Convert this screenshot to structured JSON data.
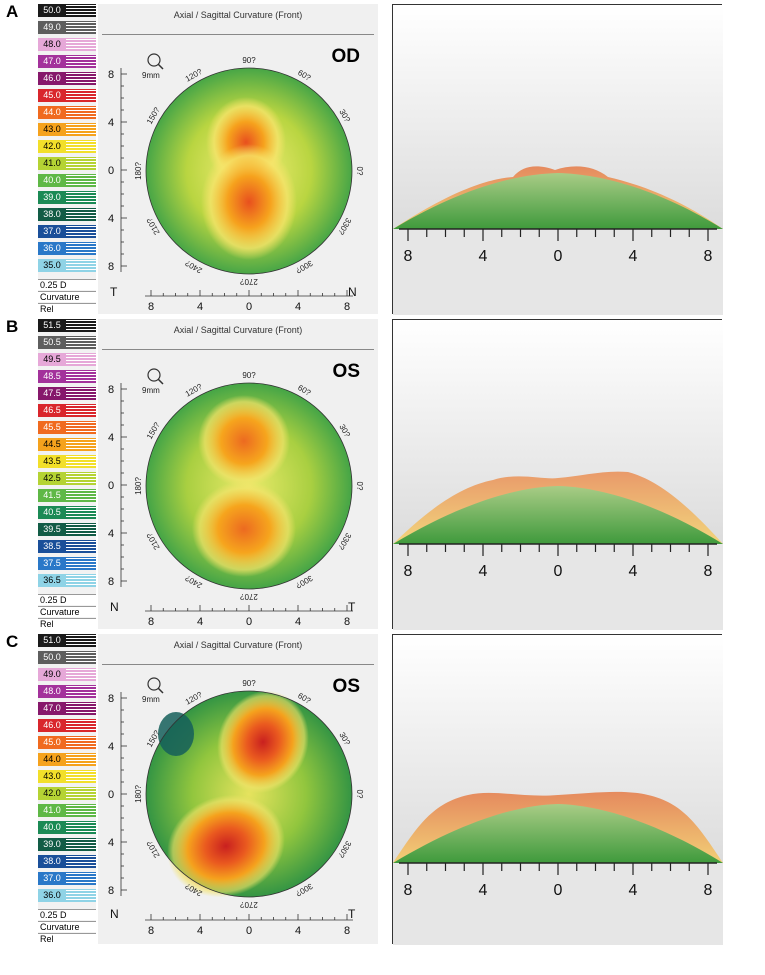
{
  "panels": [
    {
      "label": "A",
      "eye": "OD",
      "title": "Axial / Sagittal Curvature (Front)",
      "zoom_label": "9mm",
      "scale_values": [
        "50.0",
        "49.0",
        "48.0",
        "47.0",
        "46.0",
        "45.0",
        "44.0",
        "43.0",
        "42.0",
        "41.0",
        "40.0",
        "39.0",
        "38.0",
        "37.0",
        "36.0",
        "35.0"
      ],
      "step_label": "0.25 D",
      "mode_label": "Curvature",
      "ref_label": "Rel",
      "corner_left": "T",
      "corner_right": "N",
      "ring_labels": [
        "90?",
        "60?",
        "30?",
        "0?",
        "330?",
        "300?",
        "270?",
        "240?",
        "210?",
        "180?",
        "150?",
        "120?"
      ],
      "y_ticks": [
        "8",
        "4",
        "0",
        "4",
        "8"
      ],
      "x_ticks": [
        "8",
        "4",
        "0",
        "4",
        "8"
      ],
      "profile_ticks": [
        "8",
        "4",
        "0",
        "4",
        "8"
      ]
    },
    {
      "label": "B",
      "eye": "OS",
      "title": "Axial / Sagittal Curvature (Front)",
      "zoom_label": "9mm",
      "scale_values": [
        "51.5",
        "50.5",
        "49.5",
        "48.5",
        "47.5",
        "46.5",
        "45.5",
        "44.5",
        "43.5",
        "42.5",
        "41.5",
        "40.5",
        "39.5",
        "38.5",
        "37.5",
        "36.5"
      ],
      "step_label": "0.25 D",
      "mode_label": "Curvature",
      "ref_label": "Rel",
      "corner_left": "N",
      "corner_right": "T",
      "ring_labels": [
        "90?",
        "60?",
        "30?",
        "0?",
        "330?",
        "300?",
        "270?",
        "240?",
        "210?",
        "180?",
        "150?",
        "120?"
      ],
      "y_ticks": [
        "8",
        "4",
        "0",
        "4",
        "8"
      ],
      "x_ticks": [
        "8",
        "4",
        "0",
        "4",
        "8"
      ],
      "profile_ticks": [
        "8",
        "4",
        "0",
        "4",
        "8"
      ]
    },
    {
      "label": "C",
      "eye": "OS",
      "title": "Axial / Sagittal Curvature (Front)",
      "zoom_label": "9mm",
      "scale_values": [
        "51.0",
        "50.0",
        "49.0",
        "48.0",
        "47.0",
        "46.0",
        "45.0",
        "44.0",
        "43.0",
        "42.0",
        "41.0",
        "40.0",
        "39.0",
        "38.0",
        "37.0",
        "36.0"
      ],
      "step_label": "0.25 D",
      "mode_label": "Curvature",
      "ref_label": "Rel",
      "corner_left": "N",
      "corner_right": "T",
      "ring_labels": [
        "90?",
        "60?",
        "30?",
        "0?",
        "330?",
        "300?",
        "270?",
        "240?",
        "210?",
        "180?",
        "150?",
        "120?"
      ],
      "y_ticks": [
        "8",
        "4",
        "0",
        "4",
        "8"
      ],
      "x_ticks": [
        "8",
        "4",
        "0",
        "4",
        "8"
      ],
      "profile_ticks": [
        "8",
        "4",
        "0",
        "4",
        "8"
      ]
    }
  ],
  "scale_colors": [
    "#1a1a1a",
    "#5e5e5e",
    "#e6a8d8",
    "#a3329b",
    "#86186b",
    "#d9262c",
    "#f06a1f",
    "#f5a21d",
    "#f2df2a",
    "#b5d334",
    "#5fb846",
    "#1b8a55",
    "#125c46",
    "#1a4f99",
    "#2a78c8",
    "#8fd3e6"
  ]
}
